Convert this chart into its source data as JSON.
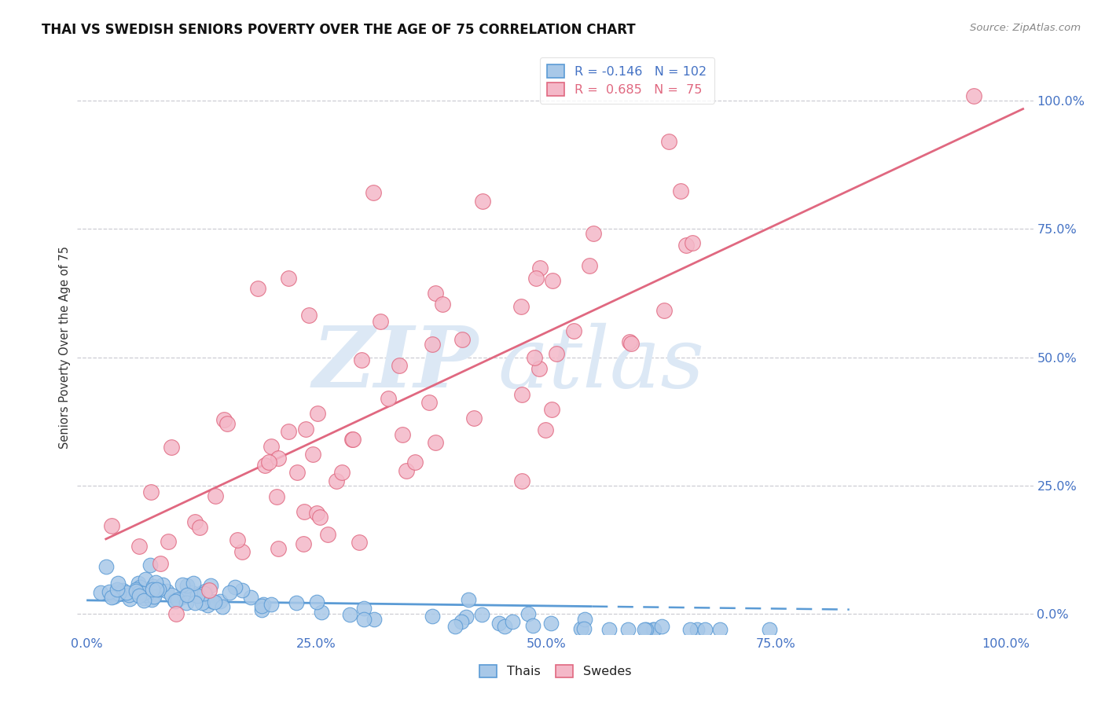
{
  "title": "THAI VS SWEDISH SENIORS POVERTY OVER THE AGE OF 75 CORRELATION CHART",
  "source": "Source: ZipAtlas.com",
  "ylabel": "Seniors Poverty Over the Age of 75",
  "xlim": [
    -0.01,
    1.03
  ],
  "ylim": [
    -0.04,
    1.08
  ],
  "x_ticks": [
    0.0,
    0.25,
    0.5,
    0.75,
    1.0
  ],
  "x_tick_labels": [
    "0.0%",
    "25.0%",
    "50.0%",
    "75.0%",
    "100.0%"
  ],
  "y_ticks": [
    0.0,
    0.25,
    0.5,
    0.75,
    1.0
  ],
  "y_tick_labels": [
    "0.0%",
    "25.0%",
    "50.0%",
    "75.0%",
    "100.0%"
  ],
  "thai_R": -0.146,
  "thai_N": 102,
  "thai_color": "#a8c8e8",
  "thai_edge_color": "#5b9bd5",
  "swede_R": 0.685,
  "swede_N": 75,
  "swede_color": "#f4b8c8",
  "swede_edge_color": "#e06880",
  "watermark": "ZIPatlas",
  "watermark_color": "#dce8f5",
  "tick_color": "#4472c4",
  "grid_color": "#c8c8d0",
  "legend_label_thais": "Thais",
  "legend_label_swedes": "Swedes",
  "legend_R_thai_color": "#4472c4",
  "legend_R_swede_color": "#e06880",
  "legend_N_thai_color": "#4472c4",
  "legend_N_swede_color": "#4472c4"
}
